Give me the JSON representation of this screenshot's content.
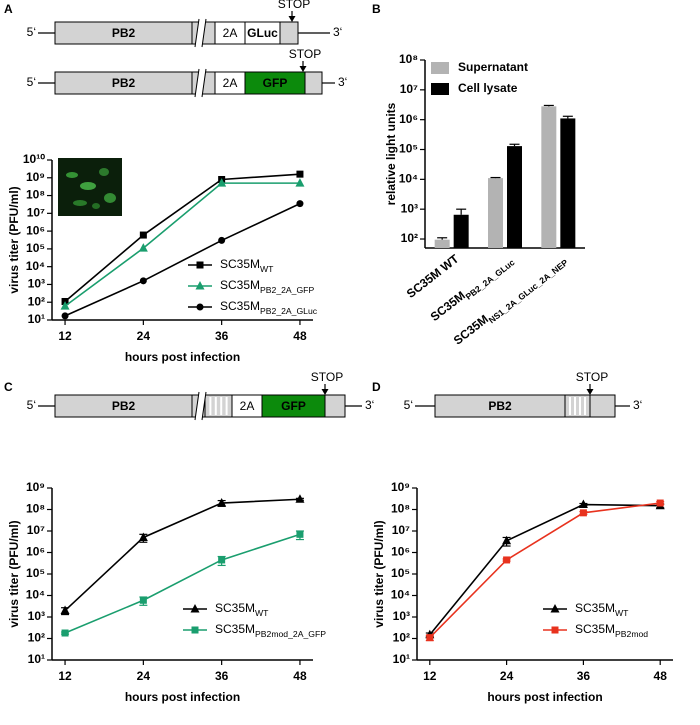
{
  "panels": [
    "A",
    "B",
    "C",
    "D"
  ],
  "diagrams": [
    {
      "five": "5‘",
      "gene": "PB2",
      "linker": "2A",
      "reporter": "GLuc",
      "stop": "STOP",
      "three": "3‘"
    },
    {
      "five": "5‘",
      "gene": "PB2",
      "linker": "2A",
      "reporter": "GFP",
      "stop": "STOP",
      "three": "3‘"
    },
    {
      "five": "5‘",
      "gene": "PB2",
      "linker": "2A",
      "reporter": "GFP",
      "stop": "STOP",
      "three": "3‘"
    },
    {
      "five": "5‘",
      "gene": "PB2",
      "stop": "STOP",
      "three": "3‘"
    }
  ],
  "chart_data": [
    {
      "type": "line",
      "x": [
        12,
        24,
        36,
        48
      ],
      "xlim": [
        10,
        50
      ],
      "xticks": [
        12,
        24,
        36,
        48
      ],
      "ylim": [
        10,
        10000000000.0
      ],
      "log_y": true,
      "yticks": [
        {
          "value": 10.0,
          "label": "10¹"
        },
        {
          "value": 100.0,
          "label": "10²"
        },
        {
          "value": 1000.0,
          "label": "10³"
        },
        {
          "value": 10000.0,
          "label": "10⁴"
        },
        {
          "value": 100000.0,
          "label": "10⁵"
        },
        {
          "value": 1000000.0,
          "label": "10⁶"
        },
        {
          "value": 10000000.0,
          "label": "10⁷"
        },
        {
          "value": 100000000.0,
          "label": "10⁸"
        },
        {
          "value": 1000000000.0,
          "label": "10⁹"
        },
        {
          "value": 10000000000.0,
          "label": "10¹⁰"
        }
      ],
      "x_label": "hours post infection",
      "y_label": "virus titer (PFU/ml)",
      "legend": "lower right",
      "series": [
        {
          "name": "SC35M",
          "sub": "WT",
          "color": "#000000",
          "marker": "square",
          "values": [
            110,
            600000,
            800000000,
            1600000000
          ]
        },
        {
          "name": "SC35M",
          "sub": "PB2_2A_GFP",
          "color": "#1a9e6e",
          "marker": "triangle",
          "values": [
            60,
            110000,
            500000000,
            500000000
          ]
        },
        {
          "name": "SC35M",
          "sub": "PB2_2A_GLuc",
          "color": "#000000",
          "marker": "circle",
          "values": [
            17,
            1600,
            300000,
            35000000
          ]
        }
      ]
    },
    {
      "type": "bar",
      "categories": [
        {
          "name": "SC35M WT"
        },
        {
          "name": "SC35M",
          "sub": "PB2_2A_GLuc"
        },
        {
          "name": "SC35M",
          "sub": "NS1_2A_GLuc_2A_NEP"
        }
      ],
      "ylim": [
        50,
        100000000.0
      ],
      "log_y": true,
      "yticks": [
        {
          "value": 100.0,
          "label": "10²"
        },
        {
          "value": 1000.0,
          "label": "10³"
        },
        {
          "value": 10000.0,
          "label": "10⁴"
        },
        {
          "value": 100000.0,
          "label": "10⁵"
        },
        {
          "value": 1000000.0,
          "label": "10⁶"
        },
        {
          "value": 10000000.0,
          "label": "10⁷"
        },
        {
          "value": 100000000.0,
          "label": "10⁸"
        }
      ],
      "y_label": "relative light units",
      "legend": "upper left",
      "series": [
        {
          "name": "Supernatant",
          "color": "#b3b3b3",
          "values": [
            95,
            11000,
            2800000
          ],
          "errors": [
            15,
            500,
            200000
          ]
        },
        {
          "name": "Cell lysate",
          "color": "#000000",
          "values": [
            650,
            130000,
            1100000
          ],
          "errors": [
            350,
            20000,
            200000
          ]
        }
      ]
    },
    {
      "type": "line",
      "x": [
        12,
        24,
        36,
        48
      ],
      "xlim": [
        10,
        50
      ],
      "xticks": [
        12,
        24,
        36,
        48
      ],
      "ylim": [
        10,
        1000000000.0
      ],
      "log_y": true,
      "yticks": [
        {
          "value": 10.0,
          "label": "10¹"
        },
        {
          "value": 100.0,
          "label": "10²"
        },
        {
          "value": 1000.0,
          "label": "10³"
        },
        {
          "value": 10000.0,
          "label": "10⁴"
        },
        {
          "value": 100000.0,
          "label": "10⁵"
        },
        {
          "value": 1000000.0,
          "label": "10⁶"
        },
        {
          "value": 10000000.0,
          "label": "10⁷"
        },
        {
          "value": 100000000.0,
          "label": "10⁸"
        },
        {
          "value": 1000000000.0,
          "label": "10⁹"
        }
      ],
      "x_label": "hours post infection",
      "y_label": "virus titer (PFU/ml)",
      "legend": "lower right",
      "series": [
        {
          "name": "SC35M",
          "sub": "WT",
          "color": "#000000",
          "marker": "triangle",
          "values": [
            2000,
            5000000,
            200000000,
            300000000
          ],
          "errors": [
            700,
            2000000,
            60000000,
            30000000
          ]
        },
        {
          "name": "SC35M",
          "sub": "PB2mod_2A_GFP",
          "color": "#1a9e6e",
          "marker": "square",
          "values": [
            180,
            6000,
            450000,
            7000000
          ],
          "errors": [
            20,
            2500,
            200000,
            3000000
          ]
        }
      ]
    },
    {
      "type": "line",
      "x": [
        12,
        24,
        36,
        48
      ],
      "xlim": [
        10,
        50
      ],
      "xticks": [
        12,
        24,
        36,
        48
      ],
      "ylim": [
        10,
        1000000000.0
      ],
      "log_y": true,
      "yticks": [
        {
          "value": 10.0,
          "label": "10¹"
        },
        {
          "value": 100.0,
          "label": "10²"
        },
        {
          "value": 1000.0,
          "label": "10³"
        },
        {
          "value": 10000.0,
          "label": "10⁴"
        },
        {
          "value": 100000.0,
          "label": "10⁵"
        },
        {
          "value": 1000000.0,
          "label": "10⁶"
        },
        {
          "value": 10000000.0,
          "label": "10⁷"
        },
        {
          "value": 100000000.0,
          "label": "10⁸"
        },
        {
          "value": 1000000000.0,
          "label": "10⁹"
        }
      ],
      "x_label": "hours post infection",
      "y_label": "virus titer (PFU/ml)",
      "legend": "lower right",
      "series": [
        {
          "name": "SC35M",
          "sub": "WT",
          "color": "#000000",
          "marker": "triangle",
          "values": [
            150,
            3500000,
            170000000,
            150000000
          ],
          "errors": [
            30,
            1500000,
            20000000,
            30000000
          ]
        },
        {
          "name": "SC35M",
          "sub": "PB2mod",
          "color": "#e8321e",
          "marker": "square",
          "values": [
            110,
            450000,
            70000000,
            200000000
          ],
          "errors": [
            30,
            50000,
            10000000,
            30000000
          ]
        }
      ]
    }
  ]
}
